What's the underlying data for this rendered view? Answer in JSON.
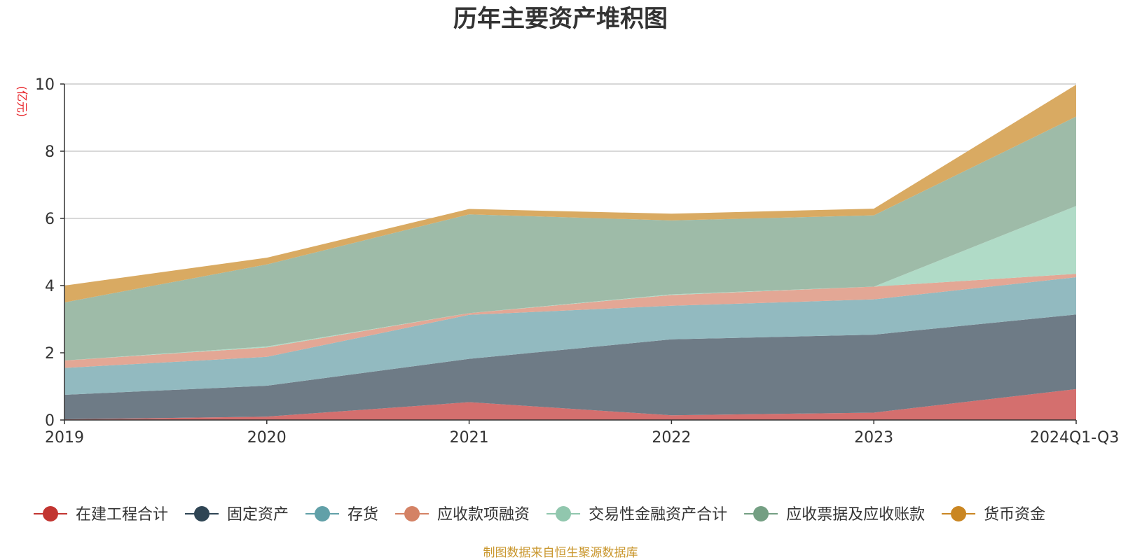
{
  "chart_data": {
    "type": "area",
    "stacked": true,
    "title": "历年主要资产堆积图",
    "ylabel": "(亿元)",
    "xlabel": "",
    "ylim": [
      0,
      10
    ],
    "yticks": [
      0,
      2,
      4,
      6,
      8,
      10
    ],
    "grid": true,
    "legend_position": "bottom",
    "categories": [
      "2019",
      "2020",
      "2021",
      "2022",
      "2023",
      "2024Q1-Q3"
    ],
    "series": [
      {
        "name": "在建工程合计",
        "color": "#c23531",
        "fill": "#d46f6e",
        "values": [
          0.02,
          0.1,
          0.53,
          0.14,
          0.22,
          0.92
        ]
      },
      {
        "name": "固定资产",
        "color": "#2f4554",
        "fill": "#6e7b86",
        "values": [
          0.73,
          0.92,
          1.29,
          2.26,
          2.32,
          2.22
        ]
      },
      {
        "name": "存货",
        "color": "#61a0a8",
        "fill": "#92bac0",
        "values": [
          0.8,
          0.86,
          1.31,
          1.0,
          1.05,
          1.11
        ]
      },
      {
        "name": "应收款项融资",
        "color": "#d48265",
        "fill": "#e3a795",
        "values": [
          0.22,
          0.28,
          0.05,
          0.32,
          0.38,
          0.1
        ]
      },
      {
        "name": "交易性金融资产合计",
        "color": "#91c7ae",
        "fill": "#b0dbc7",
        "values": [
          0.0,
          0.03,
          0.0,
          0.02,
          0.0,
          2.02
        ]
      },
      {
        "name": "应收票据及应收账款",
        "color": "#749f83",
        "fill": "#9ebba8",
        "values": [
          1.73,
          2.44,
          2.94,
          2.2,
          2.12,
          2.66
        ]
      },
      {
        "name": "货币资金",
        "color": "#ca8622",
        "fill": "#d9aa62",
        "values": [
          0.5,
          0.2,
          0.16,
          0.2,
          0.2,
          0.95
        ]
      }
    ]
  },
  "source_note": "制图数据来自恒生聚源数据库"
}
